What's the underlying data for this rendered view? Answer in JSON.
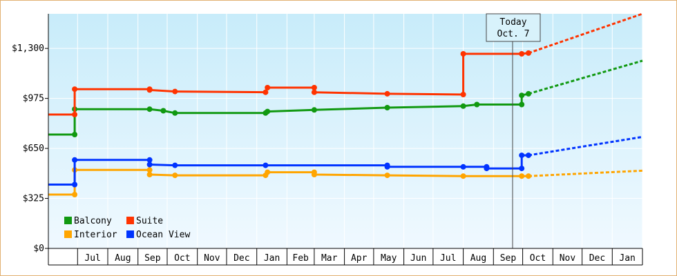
{
  "chart_data": {
    "type": "line",
    "y_ticks": [
      "$0",
      "$325",
      "$650",
      "$975",
      "$1,300"
    ],
    "y_tick_values": [
      0,
      325,
      650,
      975,
      1300
    ],
    "ylim": [
      0,
      1525
    ],
    "x_months": [
      "Jul",
      "Aug",
      "Sep",
      "Oct",
      "Nov",
      "Dec",
      "Jan",
      "Feb",
      "Mar",
      "Apr",
      "May",
      "Jun",
      "Jul",
      "Aug",
      "Sep",
      "Oct",
      "Nov",
      "Dec",
      "Jan"
    ],
    "x_domain": [
      "2014-06-01",
      "2016-02-01"
    ],
    "today": {
      "line1": "Today",
      "line2": "Oct. 7",
      "date": "2015-10-07"
    },
    "grid": true,
    "legend_position": "bottom-left",
    "colors": {
      "Balcony": "#119911",
      "Suite": "#ff3300",
      "Interior": "#ffa500",
      "Ocean View": "#0033ff"
    },
    "series": [
      {
        "name": "Balcony",
        "points": [
          [
            "2014-06-01",
            740
          ],
          [
            "2014-06-28",
            740
          ],
          [
            "2014-06-28",
            905
          ],
          [
            "2014-09-13",
            905
          ],
          [
            "2014-09-27",
            895
          ],
          [
            "2014-10-09",
            880
          ],
          [
            "2015-01-10",
            880
          ],
          [
            "2015-01-12",
            890
          ],
          [
            "2015-03-01",
            900
          ],
          [
            "2015-05-15",
            915
          ],
          [
            "2015-08-01",
            925
          ],
          [
            "2015-08-15",
            935
          ],
          [
            "2015-09-30",
            935
          ],
          [
            "2015-09-30",
            995
          ],
          [
            "2015-10-07",
            1005
          ]
        ],
        "forecast": [
          [
            "2015-10-07",
            1005
          ],
          [
            "2016-02-01",
            1220
          ]
        ]
      },
      {
        "name": "Suite",
        "points": [
          [
            "2014-06-01",
            870
          ],
          [
            "2014-06-28",
            870
          ],
          [
            "2014-06-28",
            1035
          ],
          [
            "2014-09-13",
            1035
          ],
          [
            "2014-09-13",
            1030
          ],
          [
            "2014-10-09",
            1020
          ],
          [
            "2015-01-10",
            1015
          ],
          [
            "2015-01-12",
            1045
          ],
          [
            "2015-03-01",
            1045
          ],
          [
            "2015-03-01",
            1015
          ],
          [
            "2015-05-15",
            1005
          ],
          [
            "2015-08-01",
            1000
          ],
          [
            "2015-08-01",
            1265
          ],
          [
            "2015-09-30",
            1265
          ],
          [
            "2015-10-07",
            1270
          ]
        ],
        "forecast": [
          [
            "2015-10-07",
            1270
          ],
          [
            "2016-02-01",
            1525
          ]
        ]
      },
      {
        "name": "Interior",
        "points": [
          [
            "2014-06-01",
            350
          ],
          [
            "2014-06-28",
            350
          ],
          [
            "2014-06-28",
            510
          ],
          [
            "2014-09-13",
            510
          ],
          [
            "2014-09-13",
            480
          ],
          [
            "2014-10-09",
            475
          ],
          [
            "2015-01-10",
            475
          ],
          [
            "2015-01-12",
            495
          ],
          [
            "2015-03-01",
            495
          ],
          [
            "2015-03-01",
            480
          ],
          [
            "2015-05-15",
            475
          ],
          [
            "2015-08-01",
            470
          ],
          [
            "2015-09-30",
            470
          ],
          [
            "2015-10-07",
            470
          ]
        ],
        "forecast": [
          [
            "2015-10-07",
            470
          ],
          [
            "2016-02-01",
            505
          ]
        ]
      },
      {
        "name": "Ocean View",
        "points": [
          [
            "2014-06-01",
            415
          ],
          [
            "2014-06-28",
            415
          ],
          [
            "2014-06-28",
            575
          ],
          [
            "2014-09-13",
            575
          ],
          [
            "2014-09-13",
            545
          ],
          [
            "2014-10-09",
            540
          ],
          [
            "2015-01-10",
            540
          ],
          [
            "2015-05-15",
            540
          ],
          [
            "2015-05-15",
            530
          ],
          [
            "2015-08-01",
            530
          ],
          [
            "2015-08-25",
            530
          ],
          [
            "2015-08-25",
            520
          ],
          [
            "2015-09-30",
            520
          ],
          [
            "2015-09-30",
            605
          ],
          [
            "2015-10-07",
            605
          ]
        ],
        "forecast": [
          [
            "2015-10-07",
            605
          ],
          [
            "2016-02-01",
            725
          ]
        ]
      }
    ]
  }
}
